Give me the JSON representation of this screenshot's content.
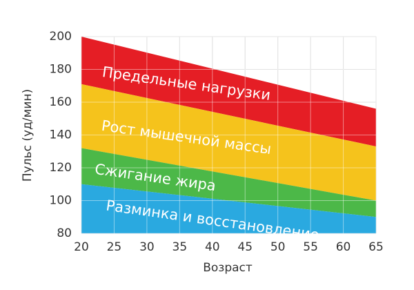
{
  "chart_data": {
    "type": "area",
    "y_label": "Пульс (уд/мин)",
    "x_label": "Возраст",
    "x": [
      20,
      65
    ],
    "series": [
      {
        "name": "Предельные нагрузки",
        "color": "#e51e25",
        "values": [
          200,
          156
        ]
      },
      {
        "name": "Рост мышечной массы",
        "color": "#f5c31c",
        "values": [
          171,
          133
        ]
      },
      {
        "name": "Сжигание жира",
        "color": "#4cb848",
        "values": [
          132,
          100
        ]
      },
      {
        "name": "Разминка и восстановление",
        "color": "#2aa9e0",
        "values": [
          110,
          90
        ]
      }
    ],
    "xlim": [
      20,
      65
    ],
    "xticks": [
      20,
      25,
      30,
      35,
      40,
      45,
      50,
      55,
      60,
      65
    ],
    "ylim": [
      80,
      200
    ],
    "yticks": [
      80,
      100,
      120,
      140,
      160,
      180,
      200
    ],
    "grid": true
  }
}
